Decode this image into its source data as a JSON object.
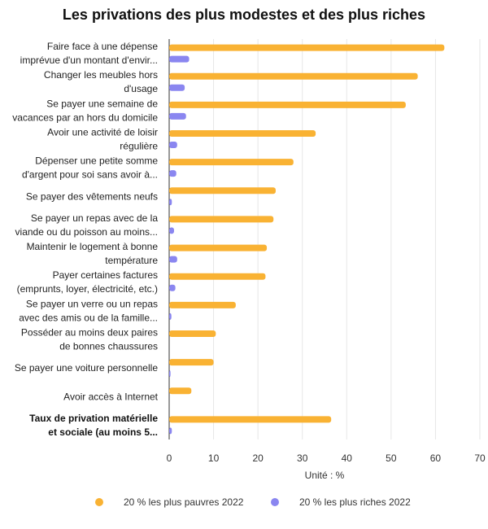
{
  "chart_data": {
    "type": "bar",
    "orientation": "horizontal",
    "title": "Les privations des plus modestes et des plus riches",
    "xlabel": "Unité : %",
    "ylabel": "",
    "xlim": [
      0,
      70
    ],
    "xticks": [
      0,
      10,
      20,
      30,
      40,
      50,
      60,
      70
    ],
    "grid": "vertical",
    "legend_position": "bottom",
    "categories": [
      [
        "Faire face à une dépense",
        "imprévue d'un montant d'envir..."
      ],
      [
        "Changer les meubles hors",
        "d'usage"
      ],
      [
        "Se payer une semaine de",
        "vacances par an hors du domicile"
      ],
      [
        "Avoir une activité de loisir",
        "régulière"
      ],
      [
        "Dépenser une petite somme",
        "d'argent pour soi sans avoir à..."
      ],
      [
        "Se payer des vêtements neufs"
      ],
      [
        "Se payer un repas avec de la",
        "viande ou du poisson au moins..."
      ],
      [
        "Maintenir le logement à bonne",
        "température"
      ],
      [
        "Payer certaines factures",
        "(emprunts, loyer, électricité, etc.)"
      ],
      [
        "Se payer un verre ou un repas",
        "avec des amis ou de la famille..."
      ],
      [
        "Posséder au moins deux paires",
        "de bonnes chaussures"
      ],
      [
        "Se payer une voiture personnelle"
      ],
      [
        "Avoir accès à Internet"
      ],
      [
        "Taux de privation matérielle",
        "et sociale (au moins 5..."
      ]
    ],
    "bold_categories": [
      13
    ],
    "series": [
      {
        "name": "20 % les plus pauvres 2022",
        "color": "#f9b233",
        "values": [
          62,
          56,
          53.3,
          33,
          28,
          24,
          23.5,
          22,
          21.7,
          15,
          10.5,
          10,
          5,
          36.5
        ]
      },
      {
        "name": "20 % les plus riches 2022",
        "color": "#8a86f0",
        "values": [
          4.5,
          3.5,
          3.8,
          1.8,
          1.6,
          0.6,
          1.1,
          1.8,
          1.4,
          0.5,
          0,
          0.3,
          0,
          0.6
        ]
      }
    ]
  }
}
